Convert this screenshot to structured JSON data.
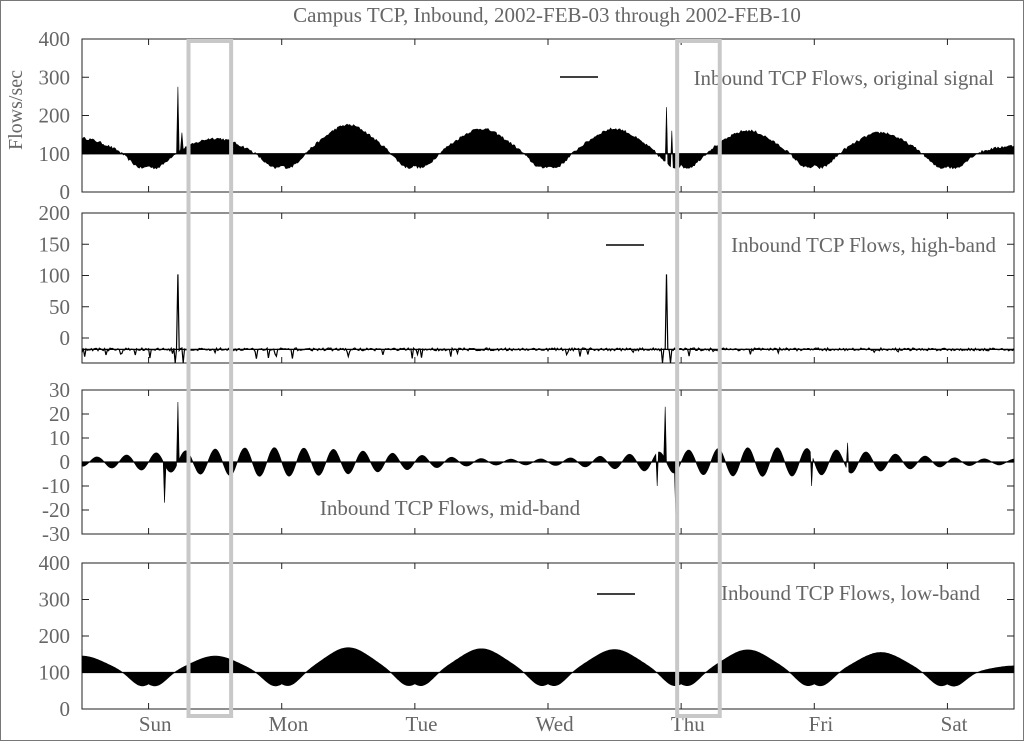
{
  "title": "Campus TCP, Inbound, 2002-FEB-03 through 2002-FEB-10",
  "ylabel": "Flows/sec",
  "day_labels": [
    "Sun",
    "Mon",
    "Tue",
    "Wed",
    "Thu",
    "Fri",
    "Sat"
  ],
  "colors": {
    "signal": "#000000",
    "highlight_box": "#c8c8c8",
    "text": "#666666"
  },
  "highlight_windows_days": [
    [
      0.3,
      0.62
    ],
    [
      3.97,
      4.29
    ]
  ],
  "chart_data": [
    {
      "type": "area",
      "legend": "Inbound TCP Flows, original signal",
      "legend_position": "top-right",
      "yticks": [
        "400",
        "300",
        "200",
        "100",
        "0"
      ],
      "ylim": [
        0,
        400
      ],
      "baseline": 100,
      "xlim_days": [
        -0.5,
        6.5
      ],
      "daily_swing": 45,
      "daily_peak_center": 0.55,
      "noise": 3.5,
      "spikes": [
        {
          "day": 0.22,
          "value": 275
        },
        {
          "day": 0.25,
          "value": 155
        },
        {
          "day": 3.89,
          "value": 222
        },
        {
          "day": 3.93,
          "value": 160
        }
      ],
      "day_peaks": [
        140,
        175,
        165,
        165,
        160,
        155,
        120
      ]
    },
    {
      "type": "line",
      "legend": "Inbound TCP Flows, high-band",
      "legend_position": "top-right",
      "yticks": [
        "200",
        "150",
        "100",
        "50",
        "0"
      ],
      "ylim": [
        -20,
        200
      ],
      "baseline": 0,
      "xlim_days": [
        -0.5,
        6.5
      ],
      "noise": 8,
      "spikes": [
        {
          "day": 0.22,
          "value": 110
        },
        {
          "day": 0.2,
          "value": -25
        },
        {
          "day": 0.26,
          "value": -20
        },
        {
          "day": 3.89,
          "value": 110
        },
        {
          "day": 3.86,
          "value": -25
        },
        {
          "day": 3.92,
          "value": -20
        }
      ]
    },
    {
      "type": "area",
      "legend": "Inbound TCP Flows, mid-band",
      "legend_position": "bottom-center",
      "yticks": [
        "30",
        "20",
        "10",
        "0",
        "-10",
        "-20",
        "-30"
      ],
      "ylim": [
        -30,
        30
      ],
      "baseline": 0,
      "xlim_days": [
        -0.5,
        6.5
      ],
      "amplitude": 6,
      "spikes": [
        {
          "day": 0.12,
          "value": -17
        },
        {
          "day": 0.22,
          "value": 25
        },
        {
          "day": 0.3,
          "value": -14
        },
        {
          "day": 3.82,
          "value": -10
        },
        {
          "day": 3.88,
          "value": 23
        },
        {
          "day": 3.96,
          "value": -22
        },
        {
          "day": 4.98,
          "value": -10
        },
        {
          "day": 5.25,
          "value": 8
        }
      ]
    },
    {
      "type": "area",
      "legend": "Inbound TCP Flows, low-band",
      "legend_position": "top-right",
      "yticks": [
        "400",
        "300",
        "200",
        "100",
        "0"
      ],
      "ylim": [
        0,
        400
      ],
      "baseline": 100,
      "xlim_days": [
        -0.5,
        6.5
      ],
      "day_peaks": [
        145,
        168,
        165,
        163,
        162,
        155,
        118
      ],
      "day_troughs": [
        62,
        65,
        70,
        65,
        78,
        68,
        60,
        98
      ]
    }
  ]
}
